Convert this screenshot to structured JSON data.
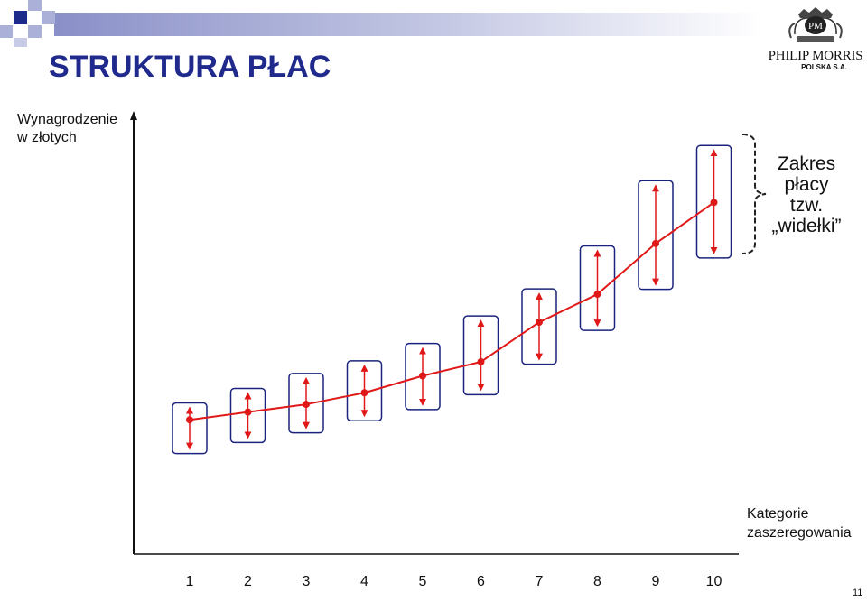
{
  "header": {
    "title": "STRUKTURA PŁAC",
    "logo": {
      "name": "PHILIP MORRIS",
      "sub": "POLSKA S.A.",
      "icon": "crest-logo-icon"
    }
  },
  "chart_data": {
    "type": "line",
    "ylabel_lines": [
      "Wynagrodzenie",
      "w złotych"
    ],
    "xlabel_lines": [
      "Kategorie",
      "zaszeregowania"
    ],
    "categories": [
      "1",
      "2",
      "3",
      "4",
      "5",
      "6",
      "7",
      "8",
      "9",
      "10"
    ],
    "series": [
      {
        "values": [
          1.0,
          1.16,
          1.32,
          1.56,
          1.91,
          2.2,
          3.02,
          3.6,
          4.65,
          5.5
        ],
        "color": "#e01818"
      }
    ],
    "ranges": [
      [
        0.45,
        1.2
      ],
      [
        0.68,
        1.5
      ],
      [
        0.88,
        1.81
      ],
      [
        1.13,
        2.07
      ],
      [
        1.36,
        2.43
      ],
      [
        1.67,
        3.0
      ],
      [
        2.3,
        3.56
      ],
      [
        3.0,
        4.45
      ],
      [
        3.85,
        5.8
      ],
      [
        4.5,
        6.53
      ]
    ],
    "range_annotation": [
      "Zakres",
      "płacy",
      "tzw.",
      "„widełki”"
    ],
    "ylim": [
      -1.78,
      7.3
    ],
    "grid": false
  },
  "colors": {
    "title": "#1f2a8c",
    "line": "#e01818",
    "box": "#1a237e",
    "square_dark": "#1e2a8a",
    "square_light": "#aab0d8"
  },
  "page_number": "11"
}
